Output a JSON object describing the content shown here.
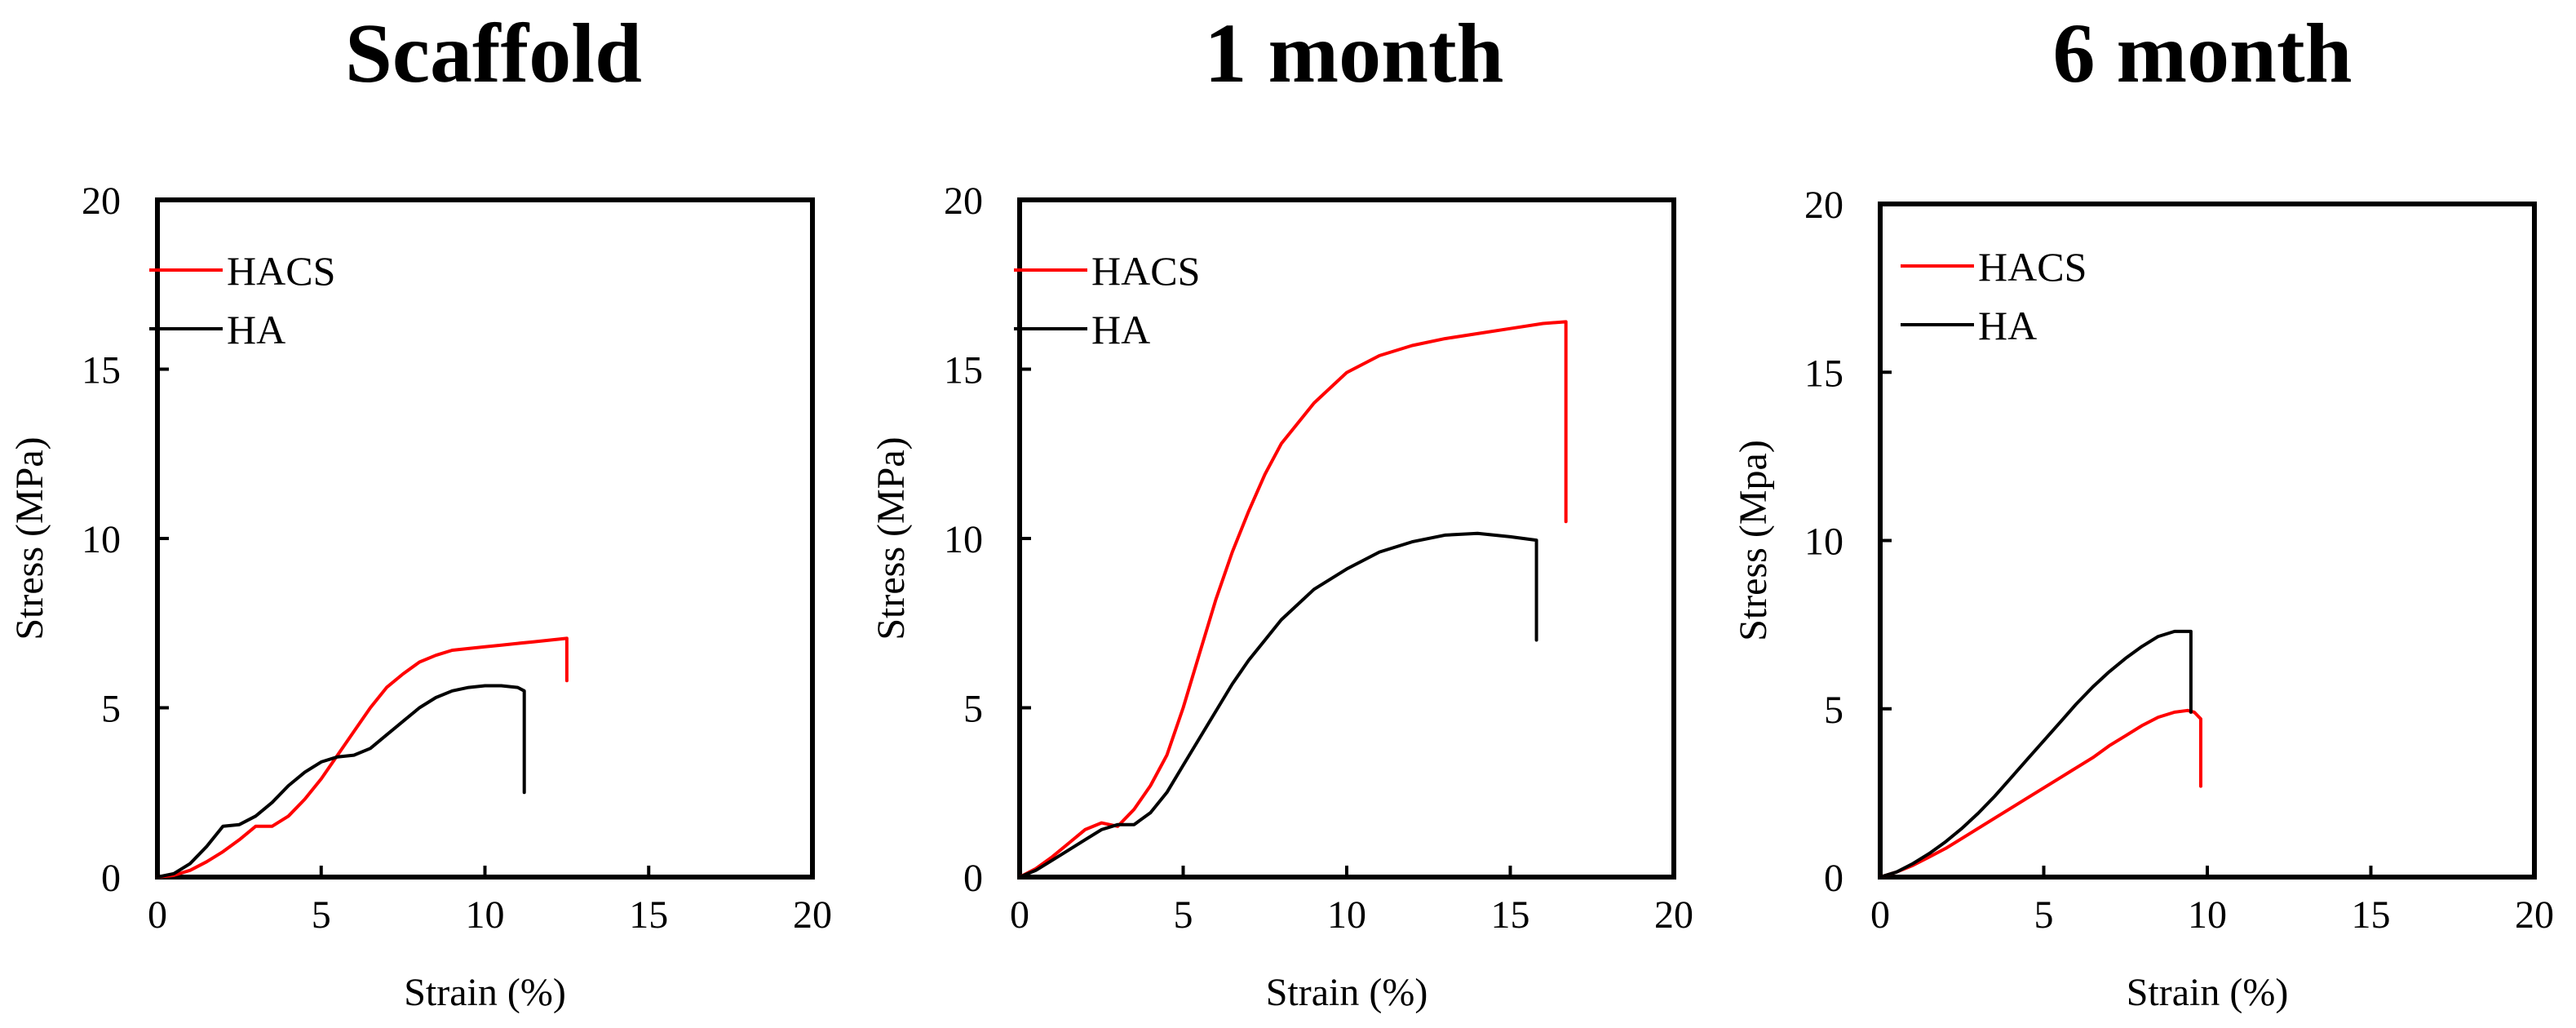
{
  "colors": {
    "HACS": "#ff0000",
    "HA": "#000000"
  },
  "chart_data": [
    {
      "type": "line",
      "title": "Scaffold",
      "xlabel": "Strain (%)",
      "ylabel": "Stress (MPa)",
      "xlim": [
        0,
        20
      ],
      "ylim": [
        0,
        20
      ],
      "xticks": [
        "0",
        "5",
        "10",
        "15",
        "20"
      ],
      "yticks": [
        "0",
        "5",
        "10",
        "15",
        "20"
      ],
      "legend_position": "top-left",
      "series": [
        {
          "name": "HACS",
          "x": [
            0,
            0.5,
            1,
            1.5,
            2,
            2.5,
            3,
            3.5,
            4,
            4.5,
            5,
            5.5,
            6,
            6.5,
            7,
            7.5,
            8,
            8.5,
            9,
            9.5,
            10,
            10.5,
            11,
            11.5,
            12,
            12.5,
            12.5
          ],
          "y": [
            0,
            0.05,
            0.2,
            0.45,
            0.75,
            1.1,
            1.5,
            1.5,
            1.8,
            2.3,
            2.9,
            3.6,
            4.3,
            5.0,
            5.6,
            6.0,
            6.35,
            6.55,
            6.7,
            6.75,
            6.8,
            6.85,
            6.9,
            6.95,
            7.0,
            7.05,
            5.8
          ]
        },
        {
          "name": "HA",
          "x": [
            0,
            0.5,
            1,
            1.5,
            2,
            2.5,
            3,
            3.5,
            4,
            4.5,
            5,
            5.5,
            6,
            6.5,
            7,
            7.5,
            8,
            8.5,
            9,
            9.5,
            10,
            10.5,
            11,
            11.2,
            11.2
          ],
          "y": [
            0,
            0.1,
            0.4,
            0.9,
            1.5,
            1.55,
            1.8,
            2.2,
            2.7,
            3.1,
            3.4,
            3.55,
            3.6,
            3.8,
            4.2,
            4.6,
            5.0,
            5.3,
            5.5,
            5.6,
            5.65,
            5.65,
            5.6,
            5.5,
            2.5
          ]
        }
      ]
    },
    {
      "type": "line",
      "title": "1 month",
      "xlabel": "Strain (%)",
      "ylabel": "Stress (MPa)",
      "xlim": [
        0,
        20
      ],
      "ylim": [
        0,
        20
      ],
      "xticks": [
        "0",
        "5",
        "10",
        "15",
        "20"
      ],
      "yticks": [
        "0",
        "5",
        "10",
        "15",
        "20"
      ],
      "legend_position": "top-left",
      "series": [
        {
          "name": "HACS",
          "x": [
            0,
            0.5,
            1,
            1.5,
            2,
            2.5,
            3,
            3.5,
            4,
            4.5,
            5,
            5.5,
            6,
            6.5,
            7,
            7.5,
            8,
            9,
            10,
            11,
            12,
            13,
            14,
            15,
            16,
            16.7,
            16.7
          ],
          "y": [
            0,
            0.25,
            0.6,
            1.0,
            1.4,
            1.6,
            1.5,
            2.0,
            2.7,
            3.6,
            5.0,
            6.6,
            8.2,
            9.6,
            10.8,
            11.9,
            12.8,
            14.0,
            14.9,
            15.4,
            15.7,
            15.9,
            16.05,
            16.2,
            16.35,
            16.4,
            10.5
          ]
        },
        {
          "name": "HA",
          "x": [
            0,
            0.5,
            1,
            1.5,
            2,
            2.5,
            3,
            3.5,
            4,
            4.5,
            5,
            5.5,
            6,
            6.5,
            7,
            7.5,
            8,
            9,
            10,
            11,
            12,
            13,
            14,
            15,
            15.8,
            15.8
          ],
          "y": [
            0,
            0.2,
            0.5,
            0.8,
            1.1,
            1.4,
            1.55,
            1.55,
            1.9,
            2.5,
            3.3,
            4.1,
            4.9,
            5.7,
            6.4,
            7.0,
            7.6,
            8.5,
            9.1,
            9.6,
            9.9,
            10.1,
            10.15,
            10.05,
            9.95,
            7.0
          ]
        }
      ]
    },
    {
      "type": "line",
      "title": "6 month",
      "xlabel": "Strain (%)",
      "ylabel": "Stress (Mpa)",
      "xlim": [
        0,
        20
      ],
      "ylim": [
        0,
        20
      ],
      "xticks": [
        "0",
        "5",
        "10",
        "15",
        "20"
      ],
      "yticks": [
        "0",
        "5",
        "10",
        "15",
        "20"
      ],
      "legend_position": "top-left",
      "series": [
        {
          "name": "HACS",
          "x": [
            0,
            0.5,
            1,
            1.5,
            2,
            2.5,
            3,
            3.5,
            4,
            4.5,
            5,
            5.5,
            6,
            6.5,
            7,
            7.5,
            8,
            8.5,
            9,
            9.4,
            9.6,
            9.8,
            9.8
          ],
          "y": [
            0,
            0.15,
            0.35,
            0.6,
            0.85,
            1.15,
            1.45,
            1.75,
            2.05,
            2.35,
            2.65,
            2.95,
            3.25,
            3.55,
            3.9,
            4.2,
            4.5,
            4.75,
            4.9,
            4.95,
            4.9,
            4.7,
            2.7
          ]
        },
        {
          "name": "HA",
          "x": [
            0,
            0.5,
            1,
            1.5,
            2,
            2.5,
            3,
            3.5,
            4,
            4.5,
            5,
            5.5,
            6,
            6.5,
            7,
            7.5,
            8,
            8.5,
            9,
            9.5,
            9.5
          ],
          "y": [
            0,
            0.15,
            0.4,
            0.7,
            1.05,
            1.45,
            1.9,
            2.4,
            2.95,
            3.5,
            4.05,
            4.6,
            5.15,
            5.65,
            6.1,
            6.5,
            6.85,
            7.15,
            7.3,
            7.3,
            4.9
          ]
        }
      ]
    }
  ]
}
